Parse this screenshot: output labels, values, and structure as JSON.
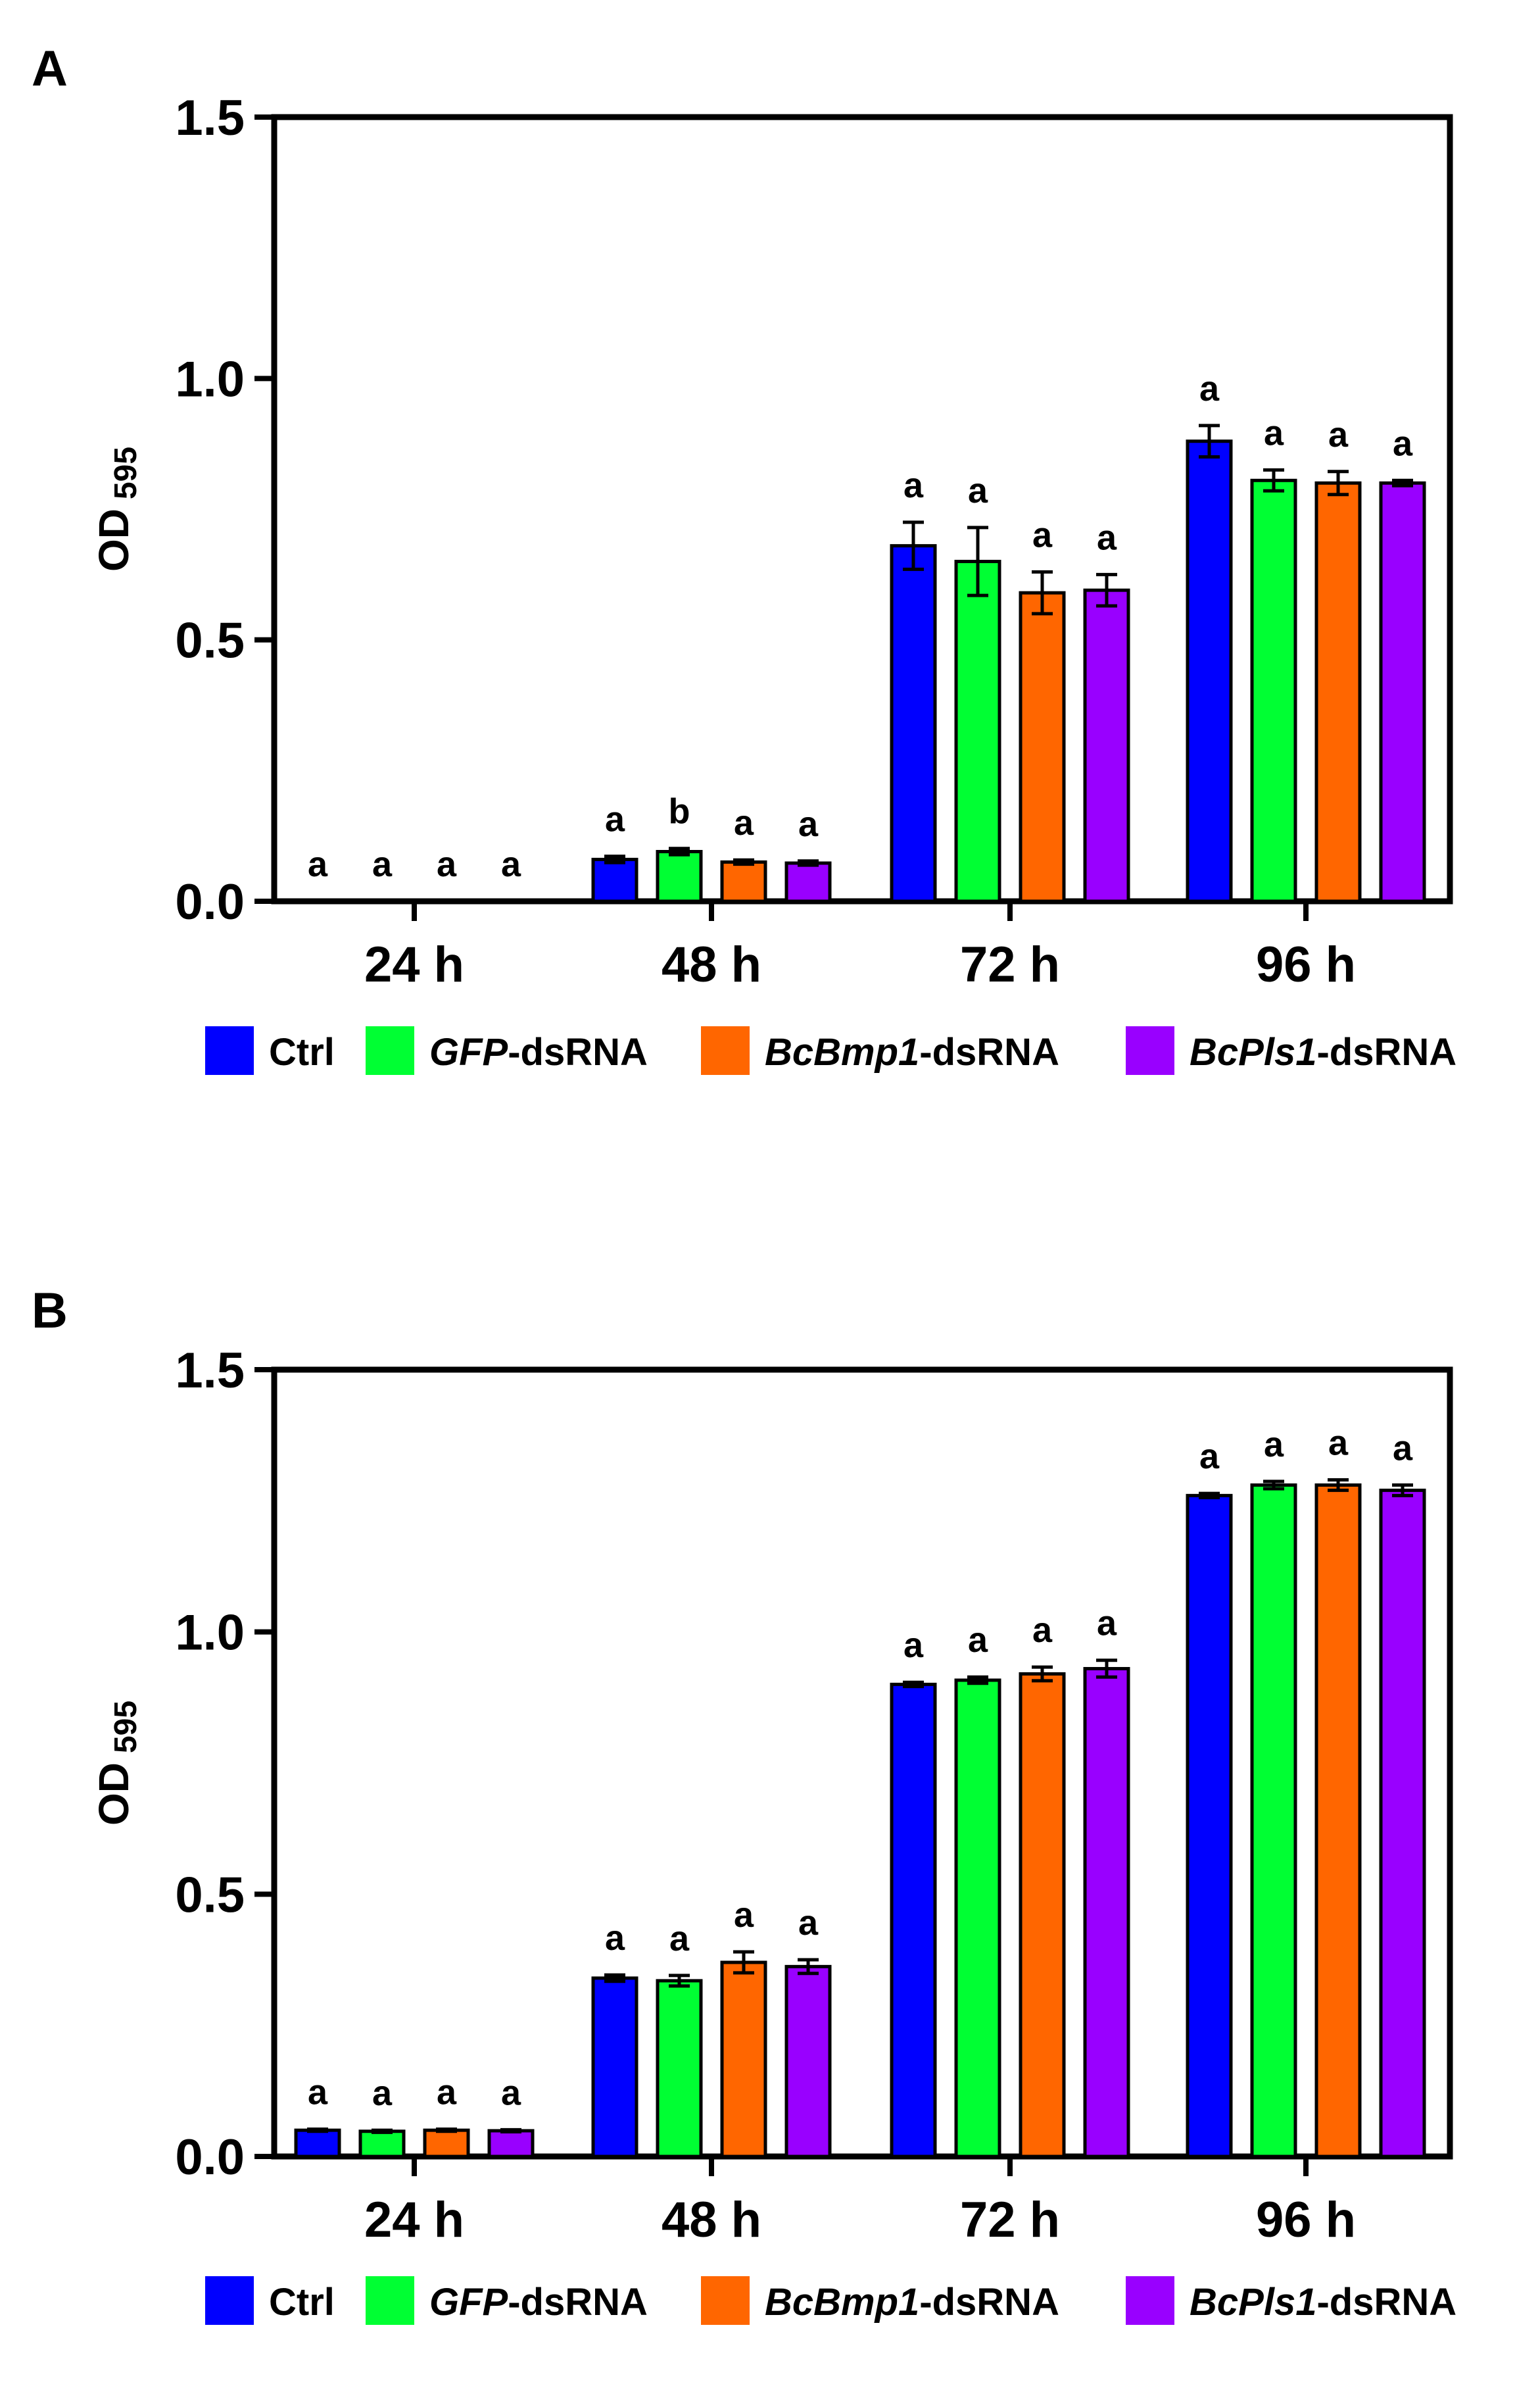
{
  "colors": {
    "Ctrl": "#0000ff",
    "GFP-dsRNA": "#00ff33",
    "BcBmp1-dsRNA": "#ff6600",
    "BcPls1-dsRNA": "#9900ff",
    "axis": "#000000"
  },
  "chart_data": [
    {
      "panel_label": "A",
      "type": "bar",
      "ylabel": "OD",
      "ylabel_subscript": "595",
      "ylim": [
        0,
        1.5
      ],
      "yticks": [
        "0.0",
        "0.5",
        "1.0",
        "1.5"
      ],
      "categories": [
        "24 h",
        "48 h",
        "72 h",
        "96 h"
      ],
      "series": [
        {
          "name": "Ctrl",
          "values": [
            0.0,
            0.08,
            0.68,
            0.88
          ],
          "errors": [
            0.0,
            0.006,
            0.045,
            0.03
          ],
          "letters": [
            "a",
            "a",
            "a",
            "a"
          ]
        },
        {
          "name": "GFP-dsRNA",
          "values": [
            0.0,
            0.095,
            0.65,
            0.805
          ],
          "errors": [
            0.0,
            0.006,
            0.065,
            0.02
          ],
          "letters": [
            "a",
            "b",
            "a",
            "a"
          ]
        },
        {
          "name": "BcBmp1-dsRNA",
          "values": [
            0.0,
            0.075,
            0.59,
            0.8
          ],
          "errors": [
            0.0,
            0.004,
            0.04,
            0.022
          ],
          "letters": [
            "a",
            "a",
            "a",
            "a"
          ]
        },
        {
          "name": "BcPls1-dsRNA",
          "values": [
            0.0,
            0.073,
            0.595,
            0.8
          ],
          "errors": [
            0.0,
            0.004,
            0.03,
            0.005
          ],
          "letters": [
            "a",
            "a",
            "a",
            "a"
          ]
        }
      ]
    },
    {
      "panel_label": "B",
      "type": "bar",
      "ylabel": "OD",
      "ylabel_subscript": "595",
      "ylim": [
        0,
        1.5
      ],
      "yticks": [
        "0.0",
        "0.5",
        "1.0",
        "1.5"
      ],
      "categories": [
        "24 h",
        "48 h",
        "72 h",
        "96 h"
      ],
      "series": [
        {
          "name": "Ctrl",
          "values": [
            0.05,
            0.34,
            0.9,
            1.26
          ],
          "errors": [
            0.002,
            0.006,
            0.004,
            0.004
          ],
          "letters": [
            "a",
            "a",
            "a",
            "a"
          ]
        },
        {
          "name": "GFP-dsRNA",
          "values": [
            0.048,
            0.335,
            0.908,
            1.28
          ],
          "errors": [
            0.002,
            0.01,
            0.006,
            0.007
          ],
          "letters": [
            "a",
            "a",
            "a",
            "a"
          ]
        },
        {
          "name": "BcBmp1-dsRNA",
          "values": [
            0.05,
            0.37,
            0.92,
            1.28
          ],
          "errors": [
            0.002,
            0.02,
            0.013,
            0.01
          ],
          "letters": [
            "a",
            "a",
            "a",
            "a"
          ]
        },
        {
          "name": "BcPls1-dsRNA",
          "values": [
            0.049,
            0.362,
            0.93,
            1.27
          ],
          "errors": [
            0.002,
            0.013,
            0.016,
            0.01
          ],
          "letters": [
            "a",
            "a",
            "a",
            "a"
          ]
        }
      ]
    }
  ],
  "legend": [
    {
      "key": "Ctrl",
      "italic": "",
      "plain": "Ctrl"
    },
    {
      "key": "GFP-dsRNA",
      "italic": "GFP",
      "plain": "-dsRNA"
    },
    {
      "key": "BcBmp1-dsRNA",
      "italic": "BcBmp1",
      "plain": "-dsRNA"
    },
    {
      "key": "BcPls1-dsRNA",
      "italic": "BcPls1",
      "plain": "-dsRNA"
    }
  ]
}
